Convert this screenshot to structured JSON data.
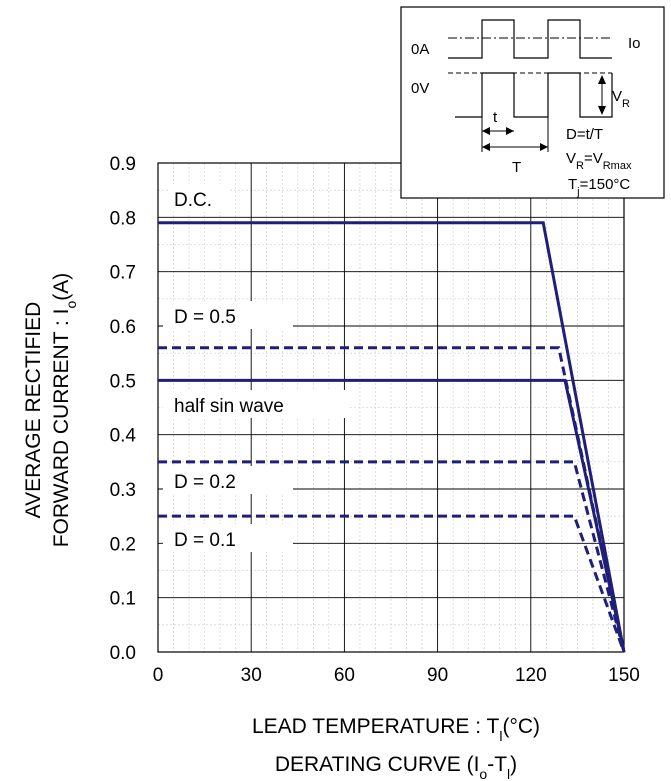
{
  "chart_data": {
    "type": "line",
    "caption_main": "DERATING CURVE (I",
    "caption_sub": "o",
    "caption_mid": "-T",
    "caption_sub2": "l",
    "caption_end": ")",
    "xlabel_main": "LEAD TEMPERATURE : T",
    "xlabel_sub": "l",
    "xlabel_end": "(°C)",
    "ylabel_line1": "AVERAGE RECTIFIED",
    "ylabel_line2_main": "FORWARD CURRENT : I",
    "ylabel_line2_sub": "o",
    "ylabel_line2_end": "(A)",
    "xlim": [
      0,
      150
    ],
    "ylim": [
      0,
      0.9
    ],
    "x_ticks": [
      "0",
      "30",
      "60",
      "90",
      "120",
      "150"
    ],
    "y_ticks": [
      "0.0",
      "0.1",
      "0.2",
      "0.3",
      "0.4",
      "0.5",
      "0.6",
      "0.7",
      "0.8",
      "0.9"
    ],
    "grid": true,
    "line_color": "#1f1f7a",
    "series": [
      {
        "name": "D.C.",
        "style": "solid",
        "x": [
          0,
          124,
          150
        ],
        "y": [
          0.79,
          0.79,
          0.0
        ]
      },
      {
        "name": "D = 0.5",
        "style": "dashed",
        "x": [
          0,
          129,
          150
        ],
        "y": [
          0.56,
          0.56,
          0.0
        ]
      },
      {
        "name": "half sin wave",
        "style": "solid",
        "x": [
          0,
          131,
          150
        ],
        "y": [
          0.5,
          0.5,
          0.0
        ]
      },
      {
        "name": "D = 0.2",
        "style": "dashed",
        "x": [
          0,
          134,
          150
        ],
        "y": [
          0.35,
          0.35,
          0.0
        ]
      },
      {
        "name": "D = 0.1",
        "style": "dashed",
        "x": [
          0,
          134,
          150
        ],
        "y": [
          0.25,
          0.25,
          0.0
        ]
      }
    ],
    "inset": {
      "label_0a": "0A",
      "label_0v": "0V",
      "label_io": "Io",
      "label_vr_main": "V",
      "label_vr_sub": "R",
      "label_t": "t",
      "label_T": "T",
      "eq1": "D=t/T",
      "eq2_main": "V",
      "eq2_sub": "R",
      "eq2_mid": "=V",
      "eq2_sub2": "Rmax",
      "eq3_main": "T",
      "eq3_sub": "j",
      "eq3_end": "=150°C"
    }
  }
}
